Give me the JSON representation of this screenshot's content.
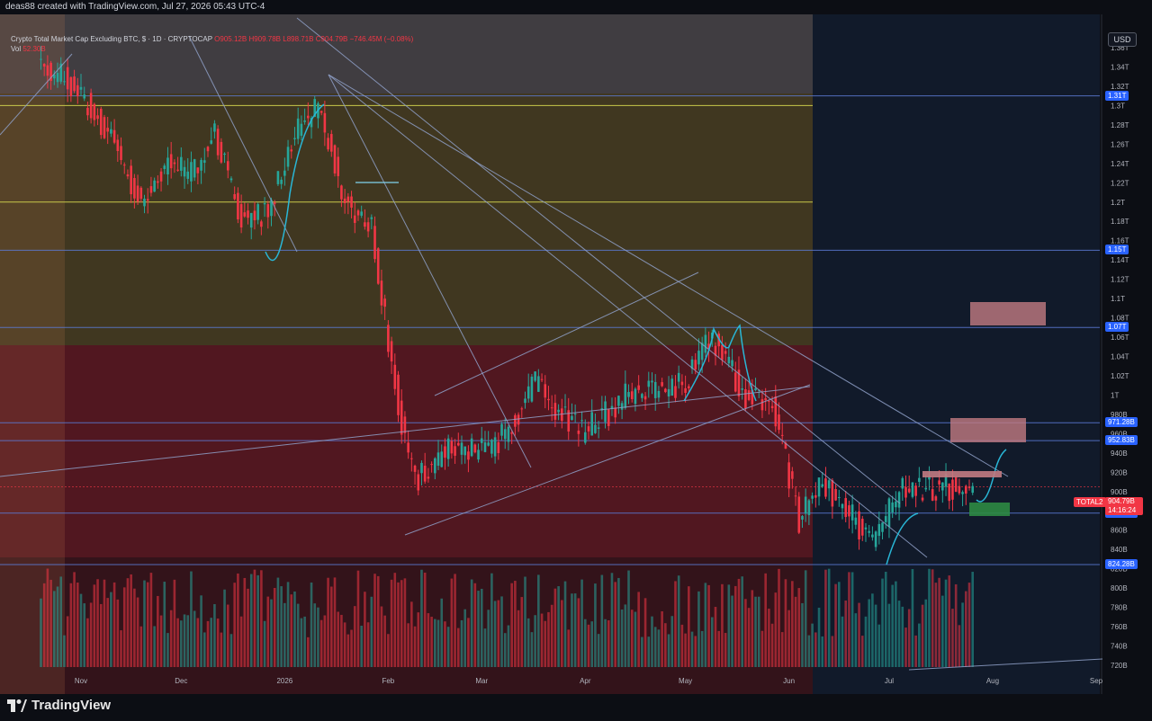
{
  "header": {
    "credit": "deas88 created with TradingView.com, Jul 27, 2026 05:43 UTC-4"
  },
  "legend": {
    "symbol": "Crypto Total Market Cap Excluding BTC, $ · 1D · CRYPTOCAP",
    "open": "O905.12B",
    "high": "H909.78B",
    "low": "L898.71B",
    "close": "C904.79B",
    "change": "−746.45M (−0.08%)",
    "vol_label": "Vol",
    "vol_value": "52.30B"
  },
  "currency_button": "USD",
  "footer": {
    "logo_text": "TradingView",
    "logo_icon": "tradingview-logo-icon"
  },
  "colors": {
    "up": "#26a69a",
    "down": "#f23645",
    "background": "#0c0e14",
    "line_blue": "#5b7bd6",
    "line_yellow": "#c8c84a",
    "annotation": "#29b6d6"
  },
  "chart_data": {
    "type": "candlestick",
    "symbol": "TOTAL2",
    "interval": "1D",
    "x_labels": [
      "Nov",
      "Dec",
      "2026",
      "Feb",
      "Mar",
      "Apr",
      "May",
      "Jun",
      "Jul",
      "Aug",
      "Sep"
    ],
    "y_axis_labels": [
      "1.36T",
      "1.34T",
      "1.32T",
      "1.3T",
      "1.28T",
      "1.26T",
      "1.24T",
      "1.22T",
      "1.2T",
      "1.18T",
      "1.16T",
      "1.14T",
      "1.12T",
      "1.1T",
      "1.08T",
      "1.06T",
      "1.04T",
      "1.02T",
      "1T",
      "980B",
      "960B",
      "940B",
      "920B",
      "900B",
      "880B",
      "860B",
      "840B",
      "820B",
      "800B",
      "780B",
      "760B",
      "740B",
      "720B"
    ],
    "ylim_billions": [
      712,
      1380
    ],
    "horizontal_levels": [
      {
        "label": "1.31T",
        "value_b": 1310
      },
      {
        "label": "1.15T",
        "value_b": 1150
      },
      {
        "label": "1.07T",
        "value_b": 1070
      },
      {
        "label": "971.28B",
        "value_b": 971.28
      },
      {
        "label": "952.83B",
        "value_b": 952.83
      },
      {
        "label": "877.68B",
        "value_b": 877.68
      },
      {
        "label": "824.28B",
        "value_b": 824.28
      }
    ],
    "last_price": {
      "label": "TOTAL2",
      "value": "904.79B",
      "countdown": "14:16:24",
      "value_b": 904.79
    },
    "monthly_path_billions": [
      {
        "date": "2025-10-20",
        "close": 1340
      },
      {
        "date": "2025-10-28",
        "close": 1330
      },
      {
        "date": "2025-11-05",
        "close": 1300
      },
      {
        "date": "2025-11-12",
        "close": 1260
      },
      {
        "date": "2025-11-20",
        "close": 1200
      },
      {
        "date": "2025-11-28",
        "close": 1240
      },
      {
        "date": "2025-12-05",
        "close": 1230
      },
      {
        "date": "2025-12-12",
        "close": 1270
      },
      {
        "date": "2025-12-20",
        "close": 1180
      },
      {
        "date": "2025-12-28",
        "close": 1190
      },
      {
        "date": "2026-01-05",
        "close": 1270
      },
      {
        "date": "2026-01-12",
        "close": 1300
      },
      {
        "date": "2026-01-20",
        "close": 1200
      },
      {
        "date": "2026-01-28",
        "close": 1170
      },
      {
        "date": "2026-02-05",
        "close": 990
      },
      {
        "date": "2026-02-10",
        "close": 910
      },
      {
        "date": "2026-02-20",
        "close": 945
      },
      {
        "date": "2026-03-05",
        "close": 940
      },
      {
        "date": "2026-03-18",
        "close": 1010
      },
      {
        "date": "2026-04-01",
        "close": 960
      },
      {
        "date": "2026-04-15",
        "close": 1000
      },
      {
        "date": "2026-05-01",
        "close": 1010
      },
      {
        "date": "2026-05-10",
        "close": 1060
      },
      {
        "date": "2026-05-20",
        "close": 1000
      },
      {
        "date": "2026-05-28",
        "close": 990
      },
      {
        "date": "2026-06-05",
        "close": 870
      },
      {
        "date": "2026-06-12",
        "close": 910
      },
      {
        "date": "2026-06-20",
        "close": 880
      },
      {
        "date": "2026-06-27",
        "close": 845
      },
      {
        "date": "2026-07-05",
        "close": 900
      },
      {
        "date": "2026-07-15",
        "close": 905
      },
      {
        "date": "2026-07-27",
        "close": 904.79
      }
    ]
  }
}
